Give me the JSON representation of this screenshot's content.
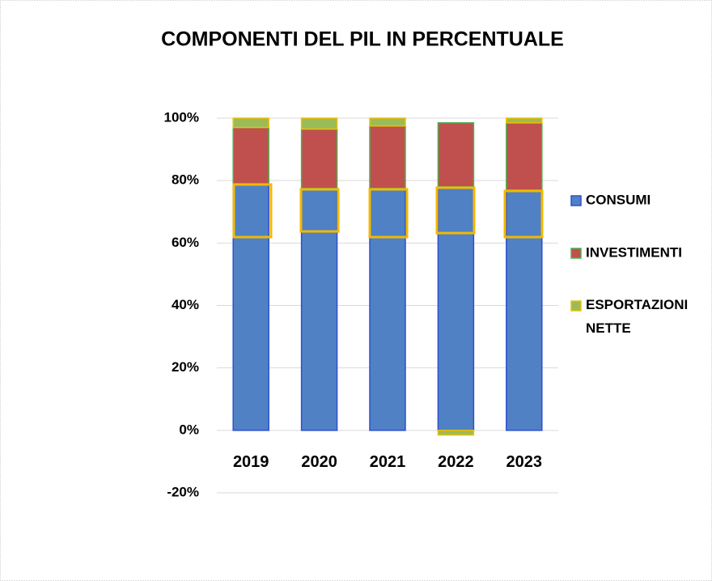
{
  "chart_data": {
    "type": "stacked_bar",
    "title": "COMPONENTI DEL PIL IN PERCENTUALE",
    "categories": [
      "2019",
      "2020",
      "2021",
      "2022",
      "2023"
    ],
    "series": [
      {
        "name": "CONSUMI",
        "color": "#4f81c4",
        "values": [
          79,
          77.5,
          77.5,
          78,
          77
        ]
      },
      {
        "name": "INVESTIMENTI",
        "color": "#c0504d",
        "values": [
          18,
          19,
          20,
          20.5,
          21.5
        ]
      },
      {
        "name": "ESPORTAZIONI NETTE",
        "color": "#9bbb59",
        "values": [
          3,
          3.5,
          2.5,
          -1.5,
          1.5
        ]
      }
    ],
    "ylim": [
      -20,
      100
    ],
    "yticks": [
      {
        "value": -20,
        "label": "-20%"
      },
      {
        "value": 0,
        "label": "0%"
      },
      {
        "value": 20,
        "label": "20%"
      },
      {
        "value": 40,
        "label": "40%"
      },
      {
        "value": 60,
        "label": "60%"
      },
      {
        "value": 80,
        "label": "80%"
      },
      {
        "value": 100,
        "label": "100%"
      }
    ],
    "grid": true,
    "legend": "right"
  }
}
